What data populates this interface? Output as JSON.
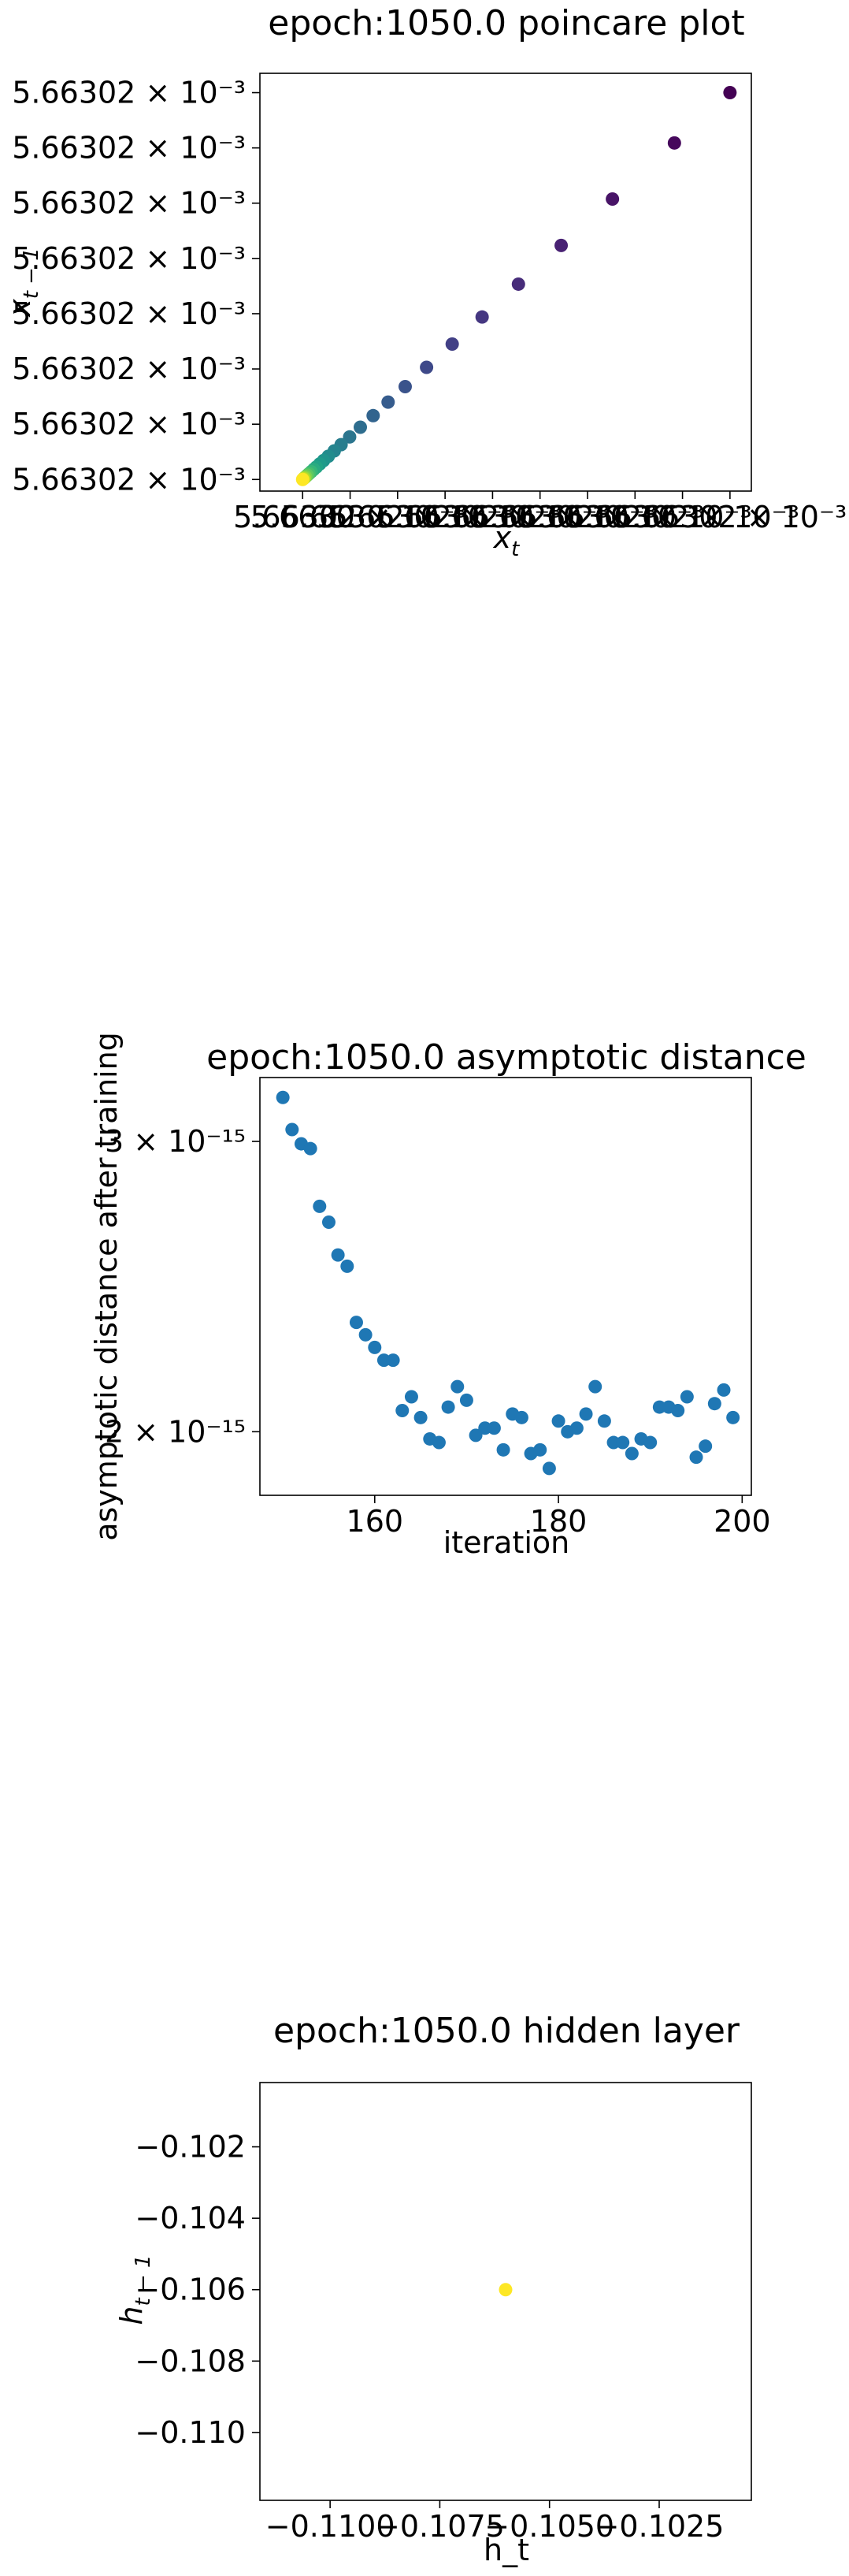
{
  "chart_data": [
    {
      "type": "scatter",
      "title": "epoch:1050.0 poincare plot",
      "xlabel_base": "x",
      "xlabel_sub": "t",
      "ylabel_base": "x",
      "ylabel_sub": "t − 1",
      "grid": false,
      "x_tick_labels": [
        "5.6630",
        "5.66302 × 10⁻³",
        "5.66302 × 10⁻³",
        "5.66302 × 10⁻³",
        "5.66302 × 10⁻³",
        "5.66302 × 10⁻³",
        "5.66302 × 10⁻³",
        "5.66302 × 10⁻³",
        "5.66302 × 10⁻³",
        "5.66302 × 10⁻³"
      ],
      "y_tick_labels": [
        "5.66302 × 10⁻³",
        "5.66302 × 10⁻³",
        "5.66302 × 10⁻³",
        "5.66302 × 10⁻³",
        "5.66302 × 10⁻³",
        "5.66302 × 10⁻³",
        "5.66302 × 10⁻³",
        "5.66302 × 10⁻³"
      ],
      "x_range": [
        -0.1,
        1.05
      ],
      "y_range": [
        -0.03,
        1.05
      ],
      "points_x": [
        1.0,
        0.87,
        0.725,
        0.605,
        0.505,
        0.42,
        0.35,
        0.29,
        0.24,
        0.2,
        0.165,
        0.135,
        0.11,
        0.09,
        0.074,
        0.06,
        0.049,
        0.04,
        0.032,
        0.026,
        0.02,
        0.015,
        0.011,
        0.007,
        0.004,
        0.002,
        0.0
      ],
      "points_y": [
        1.0,
        0.87,
        0.725,
        0.605,
        0.505,
        0.42,
        0.35,
        0.29,
        0.24,
        0.2,
        0.165,
        0.135,
        0.11,
        0.09,
        0.074,
        0.06,
        0.049,
        0.04,
        0.032,
        0.026,
        0.02,
        0.015,
        0.011,
        0.007,
        0.004,
        0.002,
        0.0
      ],
      "colors": [
        "#440154",
        "#46085c",
        "#481467",
        "#482173",
        "#472c7a",
        "#453781",
        "#424086",
        "#3e4989",
        "#3a538b",
        "#365c8d",
        "#32648e",
        "#2e6d8e",
        "#2b758e",
        "#287d8e",
        "#25848e",
        "#228c8d",
        "#1f948c",
        "#1e9b8a",
        "#21a386",
        "#2aab81",
        "#35b779",
        "#46be6f",
        "#5dc863",
        "#7ad151",
        "#9ad93d",
        "#bddf26",
        "#fde725"
      ]
    },
    {
      "type": "scatter",
      "title": "epoch:1050.0 asymptotic distance",
      "xlabel": "iteration",
      "ylabel": "asymptotic distance after training",
      "grid": false,
      "scale_y": "log",
      "xlim": [
        147.5,
        201.0
      ],
      "ylim": [
        1.83e-15,
        3.28e-15
      ],
      "x_ticks": [
        160,
        180,
        200
      ],
      "y_ticks": [
        {
          "value": 3e-15,
          "label": "3 × 10⁻¹⁵"
        },
        {
          "value": 2e-15,
          "label": "2 × 10⁻¹⁵"
        }
      ],
      "color": "#1f77b4",
      "x": [
        150,
        151,
        152,
        153,
        154,
        155,
        156,
        157,
        158,
        159,
        160,
        161,
        162,
        163,
        164,
        165,
        166,
        167,
        168,
        169,
        170,
        171,
        172,
        173,
        174,
        175,
        176,
        177,
        178,
        179,
        180,
        181,
        182,
        183,
        184,
        185,
        186,
        187,
        188,
        189,
        190,
        191,
        192,
        193,
        194,
        195,
        196,
        197,
        198,
        199
      ],
      "y": [
        3.19e-15,
        3.05e-15,
        2.99e-15,
        2.97e-15,
        2.74e-15,
        2.68e-15,
        2.56e-15,
        2.52e-15,
        2.33e-15,
        2.29e-15,
        2.25e-15,
        2.21e-15,
        2.21e-15,
        2.06e-15,
        2.1e-15,
        2.04e-15,
        1.98e-15,
        1.97e-15,
        2.07e-15,
        2.13e-15,
        2.09e-15,
        1.99e-15,
        2.01e-15,
        2.01e-15,
        1.95e-15,
        2.05e-15,
        2.04e-15,
        1.94e-15,
        1.95e-15,
        1.9e-15,
        2.03e-15,
        2e-15,
        2.01e-15,
        2.05e-15,
        2.13e-15,
        2.03e-15,
        1.97e-15,
        1.97e-15,
        1.94e-15,
        1.98e-15,
        1.97e-15,
        2.07e-15,
        2.07e-15,
        2.06e-15,
        2.1e-15,
        1.93e-15,
        1.96e-15,
        2.08e-15,
        2.12e-15,
        2.04e-15
      ]
    },
    {
      "type": "scatter",
      "title": "epoch:1050.0 hidden layer",
      "xlabel": "h_t",
      "ylabel_base": "h",
      "ylabel_sub": "t − 1",
      "grid": false,
      "xlim": [
        -0.1116,
        -0.1004
      ],
      "ylim": [
        -0.1119,
        -0.1002
      ],
      "x_ticks": [
        {
          "value": -0.11,
          "label": "−0.1100"
        },
        {
          "value": -0.1075,
          "label": "−0.1075"
        },
        {
          "value": -0.105,
          "label": "−0.1050"
        },
        {
          "value": -0.1025,
          "label": "−0.1025"
        }
      ],
      "y_ticks": [
        {
          "value": -0.102,
          "label": "−0.102"
        },
        {
          "value": -0.104,
          "label": "−0.104"
        },
        {
          "value": -0.106,
          "label": "−0.106"
        },
        {
          "value": -0.108,
          "label": "−0.108"
        },
        {
          "value": -0.11,
          "label": "−0.110"
        }
      ],
      "points": [
        {
          "x": -0.106,
          "y": -0.106
        }
      ],
      "color": "#fde725"
    }
  ]
}
